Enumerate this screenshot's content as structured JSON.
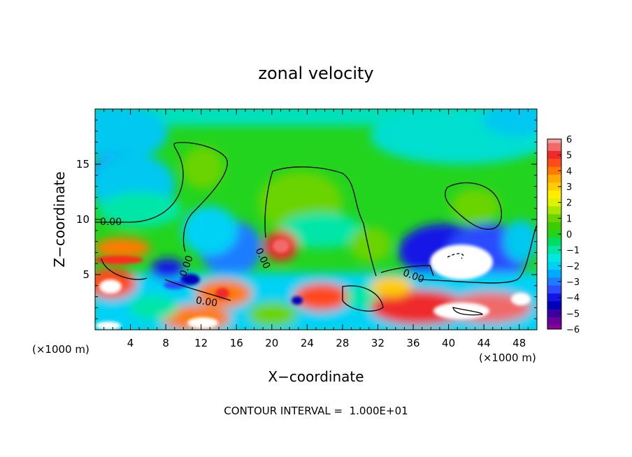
{
  "chart_data": {
    "type": "heatmap",
    "title": "zonal velocity",
    "xlabel": "X−coordinate",
    "ylabel": "Z−coordinate",
    "x_unit_left": "(×1000 m)",
    "x_unit_right": "(×1000 m)",
    "xlim": [
      0,
      50
    ],
    "ylim": [
      0,
      20
    ],
    "x_ticks": [
      4,
      8,
      12,
      16,
      20,
      24,
      28,
      32,
      36,
      40,
      44,
      48
    ],
    "y_ticks": [
      5,
      10,
      15
    ],
    "colorbar": {
      "ticks": [
        "6",
        "5",
        "4",
        "3",
        "2",
        "1",
        "0",
        "−1",
        "−2",
        "−3",
        "−4",
        "−5",
        "−6"
      ],
      "levels": [
        {
          "value": 6,
          "color": "#f4a0a0"
        },
        {
          "value": 5.5,
          "color": "#f06a6a"
        },
        {
          "value": 5,
          "color": "#ee2a2a"
        },
        {
          "value": 4.5,
          "color": "#ff4a1a"
        },
        {
          "value": 4,
          "color": "#ff7a00"
        },
        {
          "value": 3.5,
          "color": "#ffaa00"
        },
        {
          "value": 3,
          "color": "#ffcc00"
        },
        {
          "value": 2.5,
          "color": "#ffee00"
        },
        {
          "value": 2,
          "color": "#dff200"
        },
        {
          "value": 1.5,
          "color": "#a6e600"
        },
        {
          "value": 1,
          "color": "#6ad400"
        },
        {
          "value": 0.5,
          "color": "#3ccc00"
        },
        {
          "value": 0,
          "color": "#22d41e"
        },
        {
          "value": -0.5,
          "color": "#00dd66"
        },
        {
          "value": -1,
          "color": "#00e6a8"
        },
        {
          "value": -1.5,
          "color": "#00e8e0"
        },
        {
          "value": -2,
          "color": "#00d2f5"
        },
        {
          "value": -2.5,
          "color": "#00aaff"
        },
        {
          "value": -3,
          "color": "#1e7bff"
        },
        {
          "value": -3.5,
          "color": "#2a4bff"
        },
        {
          "value": -4,
          "color": "#1414e6"
        },
        {
          "value": -4.5,
          "color": "#0000b8"
        },
        {
          "value": -5,
          "color": "#3a00a0"
        },
        {
          "value": -5.5,
          "color": "#6a009a"
        },
        {
          "value": -6,
          "color": "#8a0099"
        }
      ]
    },
    "contour_labels": [
      "0.00",
      "0.00",
      "0.00",
      "0.00",
      "0.00"
    ],
    "footer": "CONTOUR INTERVAL =  1.000E+01"
  }
}
